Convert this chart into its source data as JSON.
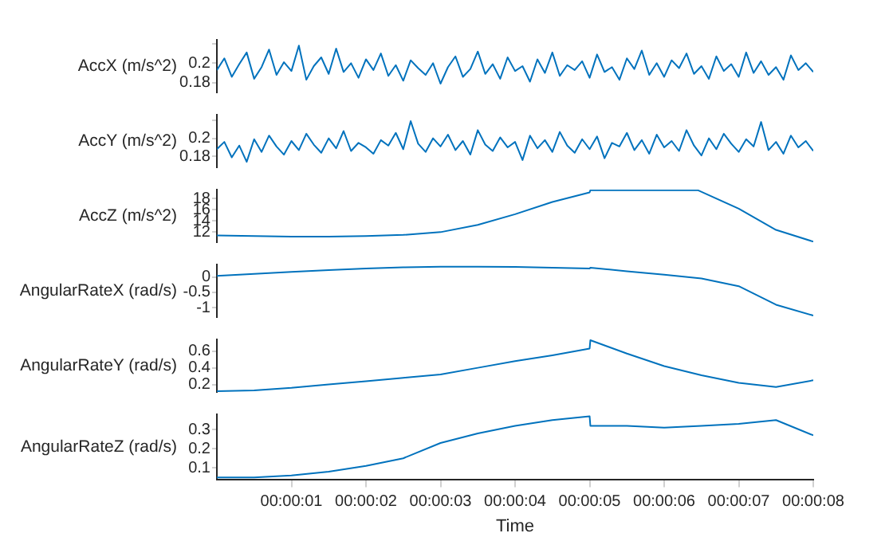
{
  "chart_data": [
    {
      "type": "line",
      "ylabel": "AccX (m/s^2)",
      "tick_labels": "y",
      "grid": false,
      "legend": false,
      "marker": "none",
      "xlim": [
        0,
        8
      ],
      "ylim": [
        0.17,
        0.224
      ],
      "yticks": [
        0.18,
        0.2,
        {
          "value": 0.22,
          "label": null
        }
      ],
      "x": [
        0,
        0.1,
        0.2,
        0.3,
        0.4,
        0.5,
        0.6,
        0.7,
        0.8,
        0.9,
        1,
        1.1,
        1.2,
        1.3,
        1.4,
        1.5,
        1.6,
        1.7,
        1.8,
        1.9,
        2,
        2.1,
        2.2,
        2.3,
        2.4,
        2.5,
        2.6,
        2.7,
        2.8,
        2.9,
        3,
        3.1,
        3.2,
        3.3,
        3.4,
        3.5,
        3.6,
        3.7,
        3.8,
        3.9,
        4,
        4.1,
        4.2,
        4.3,
        4.4,
        4.5,
        4.6,
        4.7,
        4.8,
        4.9,
        5,
        5.1,
        5.2,
        5.3,
        5.4,
        5.5,
        5.6,
        5.7,
        5.8,
        5.9,
        6,
        6.1,
        6.2,
        6.3,
        6.4,
        6.5,
        6.6,
        6.7,
        6.8,
        6.9,
        7,
        7.1,
        7.2,
        7.3,
        7.4,
        7.5,
        7.6,
        7.7,
        7.8,
        7.9,
        8
      ],
      "series": [
        {
          "color": "#0072bd",
          "values": [
            0.193,
            0.205,
            0.186,
            0.199,
            0.211,
            0.184,
            0.196,
            0.214,
            0.188,
            0.201,
            0.192,
            0.218,
            0.183,
            0.197,
            0.206,
            0.189,
            0.215,
            0.191,
            0.2,
            0.185,
            0.204,
            0.193,
            0.21,
            0.187,
            0.198,
            0.182,
            0.203,
            0.195,
            0.188,
            0.2,
            0.179,
            0.196,
            0.207,
            0.186,
            0.194,
            0.212,
            0.189,
            0.199,
            0.184,
            0.206,
            0.192,
            0.197,
            0.181,
            0.204,
            0.19,
            0.211,
            0.187,
            0.198,
            0.193,
            0.202,
            0.185,
            0.209,
            0.191,
            0.196,
            0.183,
            0.205,
            0.194,
            0.213,
            0.188,
            0.2,
            0.186,
            0.203,
            0.195,
            0.21,
            0.189,
            0.197,
            0.184,
            0.207,
            0.192,
            0.199,
            0.186,
            0.211,
            0.19,
            0.202,
            0.188,
            0.196,
            0.183,
            0.208,
            0.193,
            0.2,
            0.191
          ]
        }
      ]
    },
    {
      "type": "line",
      "ylabel": "AccY (m/s^2)",
      "tick_labels": "y",
      "grid": false,
      "legend": false,
      "marker": "none",
      "xlim": [
        0,
        8
      ],
      "ylim": [
        0.168,
        0.226
      ],
      "yticks": [
        0.18,
        0.2,
        {
          "value": 0.22,
          "label": null
        }
      ],
      "x": [
        0,
        0.1,
        0.2,
        0.3,
        0.4,
        0.5,
        0.6,
        0.7,
        0.8,
        0.9,
        1,
        1.1,
        1.2,
        1.3,
        1.4,
        1.5,
        1.6,
        1.7,
        1.8,
        1.9,
        2,
        2.1,
        2.2,
        2.3,
        2.4,
        2.5,
        2.6,
        2.7,
        2.8,
        2.9,
        3,
        3.1,
        3.2,
        3.3,
        3.4,
        3.5,
        3.6,
        3.7,
        3.8,
        3.9,
        4,
        4.1,
        4.2,
        4.3,
        4.4,
        4.5,
        4.6,
        4.7,
        4.8,
        4.9,
        5,
        5.1,
        5.2,
        5.3,
        5.4,
        5.5,
        5.6,
        5.7,
        5.8,
        5.9,
        6,
        6.1,
        6.2,
        6.3,
        6.4,
        6.5,
        6.6,
        6.7,
        6.8,
        6.9,
        7,
        7.1,
        7.2,
        7.3,
        7.4,
        7.5,
        7.6,
        7.7,
        7.8,
        7.9,
        8
      ],
      "series": [
        {
          "color": "#0072bd",
          "values": [
            0.188,
            0.196,
            0.179,
            0.192,
            0.174,
            0.199,
            0.185,
            0.203,
            0.191,
            0.182,
            0.197,
            0.187,
            0.205,
            0.193,
            0.184,
            0.2,
            0.189,
            0.208,
            0.186,
            0.195,
            0.19,
            0.183,
            0.198,
            0.192,
            0.206,
            0.188,
            0.219,
            0.194,
            0.185,
            0.2,
            0.191,
            0.204,
            0.187,
            0.197,
            0.182,
            0.209,
            0.193,
            0.186,
            0.201,
            0.19,
            0.196,
            0.176,
            0.203,
            0.189,
            0.198,
            0.185,
            0.207,
            0.192,
            0.184,
            0.199,
            0.188,
            0.202,
            0.178,
            0.195,
            0.191,
            0.206,
            0.187,
            0.198,
            0.183,
            0.204,
            0.19,
            0.197,
            0.186,
            0.209,
            0.192,
            0.181,
            0.2,
            0.188,
            0.205,
            0.194,
            0.185,
            0.199,
            0.191,
            0.218,
            0.187,
            0.196,
            0.183,
            0.203,
            0.19,
            0.197,
            0.186
          ]
        }
      ]
    },
    {
      "type": "line",
      "ylabel": "AccZ (m/s^2)",
      "tick_labels": "y",
      "grid": false,
      "legend": false,
      "marker": "none",
      "xlim": [
        0,
        8
      ],
      "ylim": [
        10.2,
        19.6
      ],
      "yticks": [
        12,
        14,
        16,
        18
      ],
      "x": [
        0,
        0.5,
        1,
        1.5,
        2,
        2.5,
        3,
        3.5,
        4,
        4.5,
        5,
        5.01,
        5.5,
        6,
        6.45,
        7,
        7.5,
        8
      ],
      "series": [
        {
          "color": "#0072bd",
          "values": [
            11.4,
            11.3,
            11.2,
            11.2,
            11.3,
            11.5,
            12.0,
            13.3,
            15.2,
            17.4,
            19.1,
            19.5,
            19.5,
            19.5,
            19.5,
            16.2,
            12.4,
            10.3
          ]
        }
      ]
    },
    {
      "type": "line",
      "ylabel": "AngularRateX (rad/s)",
      "tick_labels": "y",
      "grid": false,
      "legend": false,
      "marker": "none",
      "xlim": [
        0,
        8
      ],
      "ylim": [
        -1.3,
        0.4
      ],
      "yticks": [
        -1,
        -0.5,
        0
      ],
      "x": [
        0,
        0.5,
        1,
        1.5,
        2,
        2.5,
        3,
        3.5,
        4,
        4.5,
        5,
        5.01,
        5.5,
        6,
        6.5,
        7,
        7.5,
        8
      ],
      "series": [
        {
          "color": "#0072bd",
          "values": [
            0.03,
            0.1,
            0.16,
            0.22,
            0.27,
            0.31,
            0.33,
            0.33,
            0.32,
            0.3,
            0.27,
            0.3,
            0.18,
            0.07,
            -0.05,
            -0.3,
            -0.9,
            -1.25
          ]
        }
      ]
    },
    {
      "type": "line",
      "ylabel": "AngularRateY (rad/s)",
      "tick_labels": "y",
      "grid": false,
      "legend": false,
      "marker": "none",
      "xlim": [
        0,
        8
      ],
      "ylim": [
        0.11,
        0.74
      ],
      "yticks": [
        0.2,
        0.4,
        0.6
      ],
      "x": [
        0,
        0.5,
        1,
        1.5,
        2,
        2.5,
        3,
        3.5,
        4,
        4.5,
        5,
        5.01,
        5.5,
        6,
        6.5,
        7,
        7.5,
        8
      ],
      "series": [
        {
          "color": "#0072bd",
          "values": [
            0.12,
            0.13,
            0.16,
            0.2,
            0.24,
            0.28,
            0.32,
            0.4,
            0.48,
            0.55,
            0.63,
            0.73,
            0.57,
            0.42,
            0.31,
            0.22,
            0.17,
            0.25
          ]
        }
      ]
    },
    {
      "type": "line",
      "ylabel": "AngularRateZ (rad/s)",
      "xlabel": "Time",
      "grid": false,
      "legend": false,
      "marker": "none",
      "xlim": [
        0,
        8
      ],
      "ylim": [
        0.04,
        0.38
      ],
      "yticks": [
        0.1,
        0.2,
        0.3
      ],
      "xticks": [
        {
          "value": 1,
          "label": "00:00:01"
        },
        {
          "value": 2,
          "label": "00:00:02"
        },
        {
          "value": 3,
          "label": "00:00:03"
        },
        {
          "value": 4,
          "label": "00:00:04"
        },
        {
          "value": 5,
          "label": "00:00:05"
        },
        {
          "value": 6,
          "label": "00:00:06"
        },
        {
          "value": 7,
          "label": "00:00:07"
        },
        {
          "value": 8,
          "label": "00:00:08"
        }
      ],
      "x": [
        0,
        0.5,
        1,
        1.5,
        2,
        2.5,
        3,
        3.5,
        4,
        4.5,
        5,
        5.01,
        5.5,
        6,
        6.5,
        7,
        7.5,
        8
      ],
      "series": [
        {
          "color": "#0072bd",
          "values": [
            0.05,
            0.05,
            0.06,
            0.08,
            0.11,
            0.15,
            0.23,
            0.28,
            0.32,
            0.35,
            0.37,
            0.32,
            0.32,
            0.31,
            0.32,
            0.33,
            0.35,
            0.27
          ]
        }
      ]
    }
  ]
}
